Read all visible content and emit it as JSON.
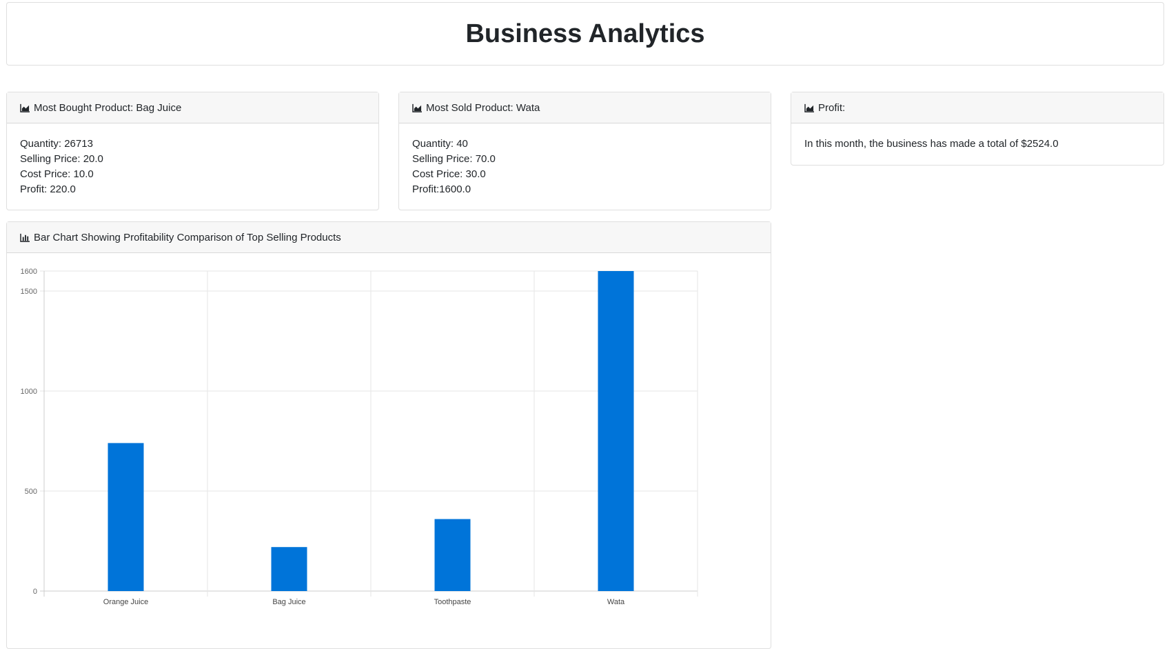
{
  "page": {
    "title": "Business Analytics"
  },
  "most_bought": {
    "header": "Most Bought Product: Bag Juice",
    "lines": [
      "Quantity: 26713",
      "Selling Price: 20.0",
      "Cost Price: 10.0",
      "Profit: 220.0"
    ]
  },
  "most_sold": {
    "header": "Most Sold Product: Wata",
    "lines": [
      "Quantity: 40",
      "Selling Price: 70.0",
      "Cost Price: 30.0",
      "Profit:1600.0"
    ]
  },
  "profit": {
    "header": "Profit:",
    "text": "In this month, the business has made a total of $2524.0"
  },
  "chart_card": {
    "header": "Bar Chart Showing Profitability Comparison of Top Selling Products"
  },
  "colors": {
    "bar": "#0074d9",
    "grid": "#e6e6e6",
    "axis": "#cccccc",
    "icon": "#212529"
  },
  "icons": {
    "card_header": "area-chart-icon",
    "chart_header": "bar-chart-icon"
  },
  "chart_data": {
    "type": "bar",
    "categories": [
      "Orange Juice",
      "Bag Juice",
      "Toothpaste",
      "Wata"
    ],
    "values": [
      740,
      220,
      360,
      1600
    ],
    "ylim": [
      0,
      1600
    ],
    "yticks": [
      "0",
      "500",
      "1000",
      "1500",
      "1600"
    ],
    "ytick_values": [
      0,
      500,
      1000,
      1500,
      1600
    ],
    "grid": true,
    "title": "",
    "xlabel": "",
    "ylabel": ""
  }
}
